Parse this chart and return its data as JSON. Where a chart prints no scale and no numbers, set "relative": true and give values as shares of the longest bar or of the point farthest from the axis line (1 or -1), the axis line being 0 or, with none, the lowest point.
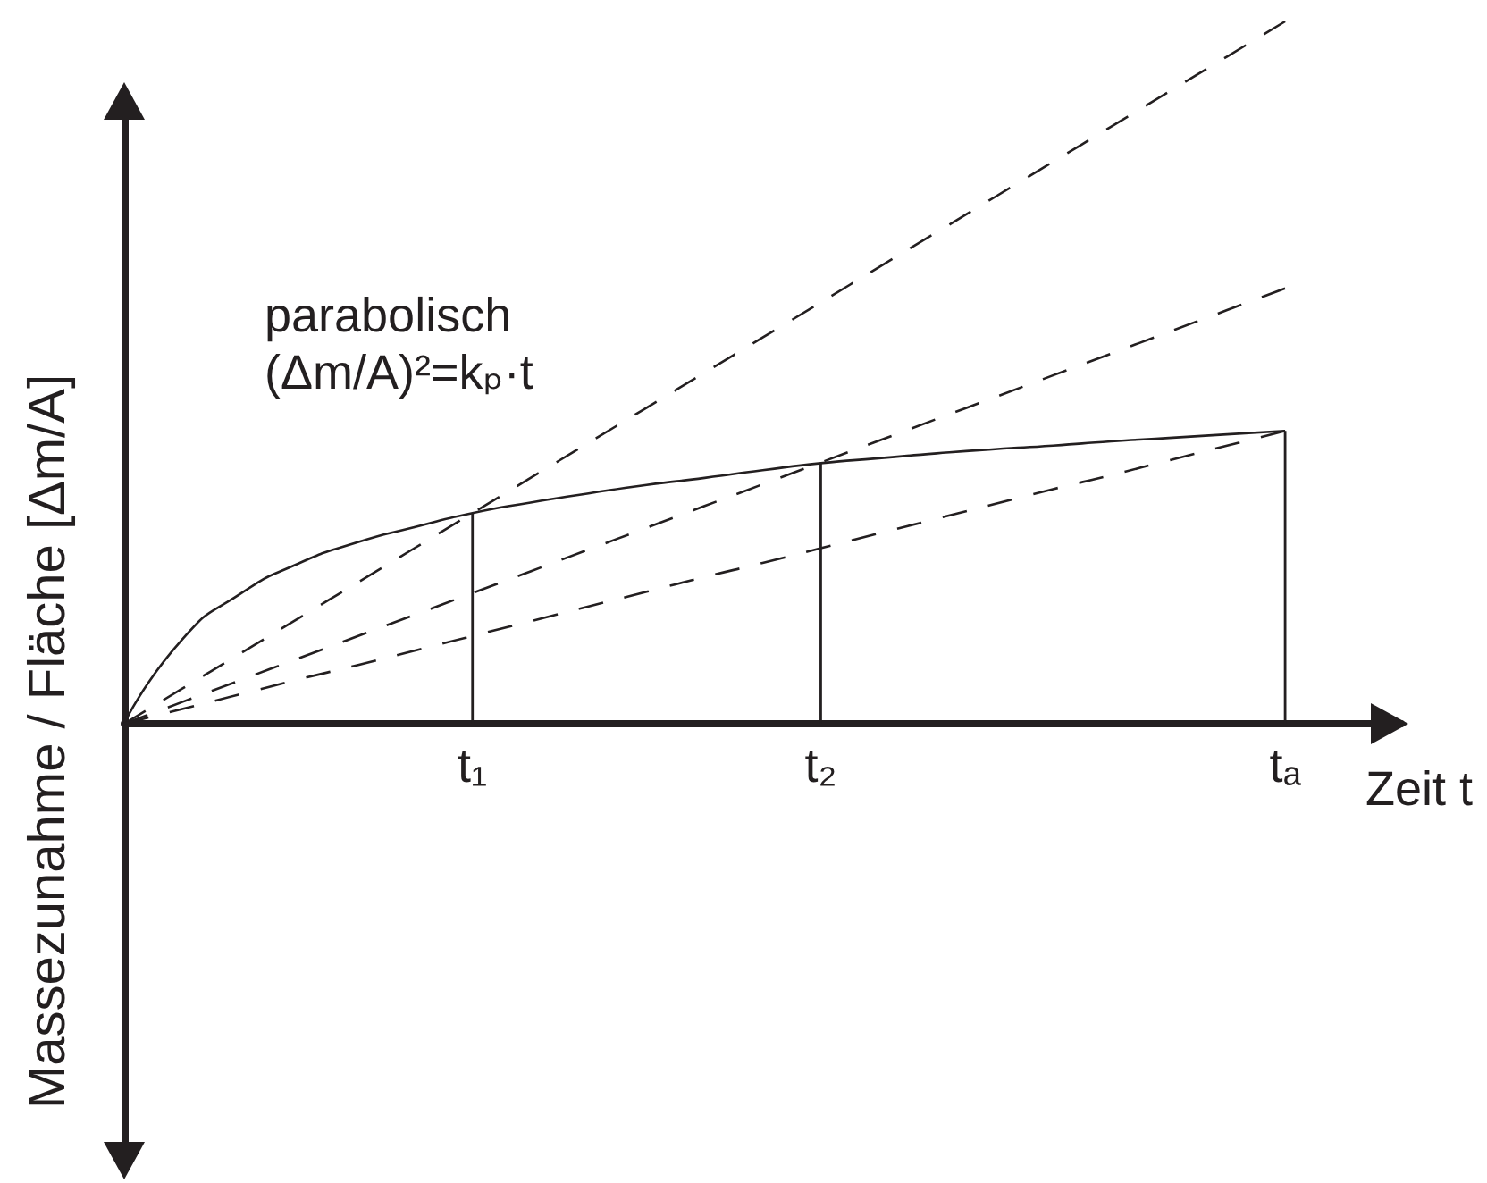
{
  "chart_data": {
    "type": "line",
    "relative": true,
    "xlabel": "Zeit t",
    "ylabel": "Massezunahme / Fläche [Δm/A]",
    "annotations": [
      "parabolisch",
      "(Δm/A)²=kₚ·t"
    ],
    "categories": [
      null,
      null,
      null,
      null,
      null,
      null,
      "t₁",
      null,
      null,
      null,
      null,
      null,
      "t₂",
      null,
      null,
      null,
      null,
      null,
      null,
      null,
      "tₐ",
      null,
      null
    ],
    "tick_labels": "x",
    "marker": "none",
    "line_style": "solid",
    "series": [
      {
        "color": "#231f20",
        "values": [
          0,
          0.12,
          0.185,
          0.228,
          0.258,
          0.28,
          0.3,
          0.315,
          0.328,
          0.34,
          0.35,
          0.361,
          0.371,
          0.378,
          0.385,
          0.391,
          0.396,
          0.402,
          0.407,
          0.412,
          0.417,
          null,
          null
        ]
      },
      {
        "color": "#231f20",
        "line_style": "dashed",
        "values": [
          0,
          0.05,
          0.1,
          0.15,
          0.2,
          0.25,
          0.3,
          0.35,
          0.4,
          0.45,
          0.5,
          0.55,
          0.6,
          0.65,
          0.7,
          0.75,
          0.8,
          0.85,
          0.9,
          0.95,
          1,
          null,
          null
        ]
      },
      {
        "color": "#231f20",
        "line_style": "dashed",
        "values": [
          0,
          0.031,
          0.062,
          0.093,
          0.124,
          0.155,
          0.186,
          0.217,
          0.248,
          0.279,
          0.31,
          0.341,
          0.372,
          0.403,
          0.434,
          0.465,
          0.496,
          0.527,
          0.558,
          0.589,
          0.62,
          null,
          null
        ]
      },
      {
        "color": "#231f20",
        "line_style": "dashed",
        "values": [
          0,
          0.021,
          0.042,
          0.063,
          0.083,
          0.104,
          0.125,
          0.146,
          0.167,
          0.188,
          0.209,
          0.229,
          0.25,
          0.271,
          0.292,
          0.313,
          0.334,
          0.354,
          0.375,
          0.396,
          0.417,
          null,
          null
        ]
      },
      {
        "type": "bar",
        "color": "#231f20",
        "values": [
          null,
          null,
          null,
          null,
          null,
          null,
          0.3,
          null,
          null,
          null,
          null,
          null,
          0.371,
          null,
          null,
          null,
          null,
          null,
          null,
          null,
          0.417,
          null,
          null
        ]
      }
    ]
  }
}
